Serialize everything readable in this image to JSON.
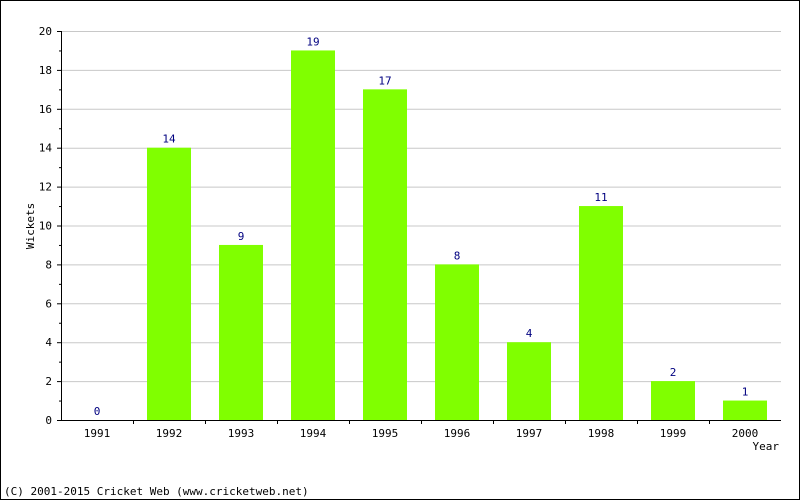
{
  "chart_data": {
    "type": "bar",
    "categories": [
      "1991",
      "1992",
      "1993",
      "1994",
      "1995",
      "1996",
      "1997",
      "1998",
      "1999",
      "2000"
    ],
    "values": [
      0,
      14,
      9,
      19,
      17,
      8,
      4,
      11,
      2,
      1
    ],
    "title": "",
    "xlabel": "Year",
    "ylabel": "Wickets",
    "ylim": [
      0,
      20
    ],
    "yticks": [
      0,
      2,
      4,
      6,
      8,
      10,
      12,
      14,
      16,
      18,
      20
    ],
    "grid": true,
    "legend": "none",
    "bar_color": "#80ff00",
    "label_color": "#000080",
    "grid_color": "#c8c8c8"
  },
  "credit": "(C) 2001-2015 Cricket Web (www.cricketweb.net)"
}
